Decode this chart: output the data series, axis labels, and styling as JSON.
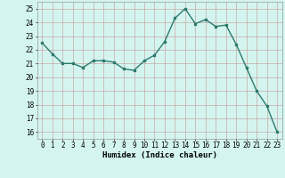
{
  "x": [
    0,
    1,
    2,
    3,
    4,
    5,
    6,
    7,
    8,
    9,
    10,
    11,
    12,
    13,
    14,
    15,
    16,
    17,
    18,
    19,
    20,
    21,
    22,
    23
  ],
  "y": [
    22.5,
    21.7,
    21.0,
    21.0,
    20.7,
    21.2,
    21.2,
    21.1,
    20.6,
    20.5,
    21.2,
    21.6,
    22.6,
    24.3,
    25.0,
    23.9,
    24.2,
    23.7,
    23.8,
    22.4,
    20.7,
    19.0,
    17.9,
    16.0
  ],
  "xlabel": "Humidex (Indice chaleur)",
  "ylim": [
    15.5,
    25.5
  ],
  "xlim": [
    -0.5,
    23.5
  ],
  "yticks": [
    16,
    17,
    18,
    19,
    20,
    21,
    22,
    23,
    24,
    25
  ],
  "xticks": [
    0,
    1,
    2,
    3,
    4,
    5,
    6,
    7,
    8,
    9,
    10,
    11,
    12,
    13,
    14,
    15,
    16,
    17,
    18,
    19,
    20,
    21,
    22,
    23
  ],
  "line_color": "#2d7a6e",
  "marker": "s",
  "marker_size": 1.8,
  "line_width": 1.0,
  "bg_color": "#d4f5ef",
  "grid_color": "#c8a8a8",
  "label_fontsize": 6.5,
  "tick_fontsize": 5.5
}
